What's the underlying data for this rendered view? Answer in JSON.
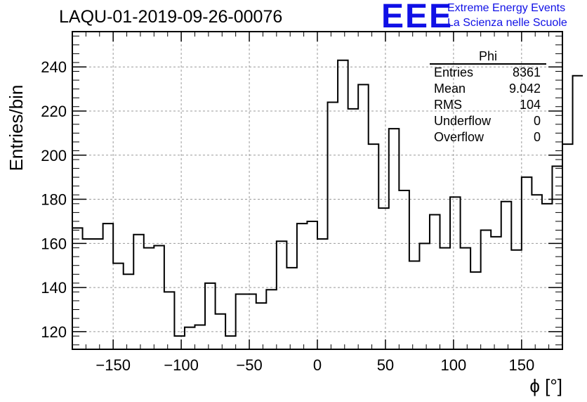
{
  "title": "LAQU-01-2019-09-26-00076",
  "logo": {
    "mark": "EEE",
    "line1": "Extreme Energy Events",
    "line2": "La Scienza nelle Scuole",
    "color": "#1010e6"
  },
  "stats": {
    "name": "Phi",
    "rows": [
      {
        "label": "Entries",
        "value": "8361"
      },
      {
        "label": "Mean",
        "value": "9.042"
      },
      {
        "label": "RMS",
        "value": "104"
      },
      {
        "label": "Underflow",
        "value": "0"
      },
      {
        "label": "Overflow",
        "value": "0"
      }
    ]
  },
  "chart_data": {
    "type": "bar",
    "histogram": true,
    "title": "LAQU-01-2019-09-26-00076",
    "xlabel": "ϕ [°]",
    "ylabel": "Entries/bin",
    "xlim": [
      -180,
      180
    ],
    "ylim": [
      112,
      256
    ],
    "bin_width": 7.5,
    "grid": true,
    "xticks": [
      -150,
      -100,
      -50,
      0,
      50,
      100,
      150
    ],
    "yticks": [
      120,
      140,
      160,
      180,
      200,
      220,
      240
    ],
    "tick_labels_x": [
      "−150",
      "−100",
      "−50",
      "0",
      "50",
      "100",
      "150"
    ],
    "tick_labels_y": [
      "120",
      "140",
      "160",
      "180",
      "200",
      "220",
      "240"
    ],
    "bin_edges_start": -180,
    "values": [
      167,
      162,
      162,
      169,
      151,
      146,
      164,
      158,
      159,
      138,
      118,
      122,
      123,
      142,
      128,
      118,
      137,
      137,
      133,
      139,
      161,
      149,
      169,
      170,
      162,
      224,
      243,
      221,
      232,
      205,
      176,
      212,
      184,
      152,
      160,
      173,
      158,
      181,
      158,
      147,
      166,
      163,
      179,
      157,
      190,
      182,
      178,
      195,
      205,
      236
    ]
  }
}
